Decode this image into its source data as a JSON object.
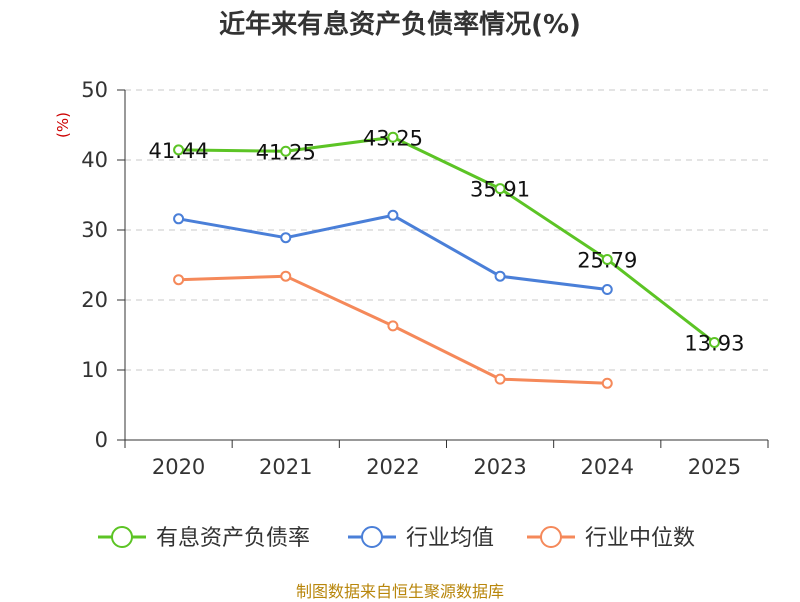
{
  "title": "近年来有息资产负债率情况(%)",
  "source": "制图数据来自恒生聚源数据库",
  "chart_data": {
    "type": "line",
    "title": "近年来有息资产负债率情况(%)",
    "ylabel": "(%)",
    "xlabel": "",
    "ylim": [
      0,
      50
    ],
    "yticks": [
      0,
      10,
      20,
      30,
      40,
      50
    ],
    "grid": true,
    "legend_position": "bottom",
    "categories": [
      "2020",
      "2021",
      "2022",
      "2023",
      "2024",
      "2025"
    ],
    "series": [
      {
        "name": "有息资产负债率",
        "color": "#5cc425",
        "show_labels": true,
        "values": [
          41.44,
          41.25,
          43.25,
          35.91,
          25.79,
          13.93
        ],
        "labels": [
          "41.44",
          "41.25",
          "43.25",
          "35.91",
          "25.79",
          "13.93"
        ]
      },
      {
        "name": "行业均值",
        "color": "#4a7fd8",
        "show_labels": false,
        "values": [
          31.6,
          28.9,
          32.1,
          23.4,
          21.5,
          null
        ]
      },
      {
        "name": "行业中位数",
        "color": "#f5895a",
        "show_labels": false,
        "values": [
          22.9,
          23.4,
          16.3,
          8.7,
          8.1,
          null
        ]
      }
    ]
  }
}
